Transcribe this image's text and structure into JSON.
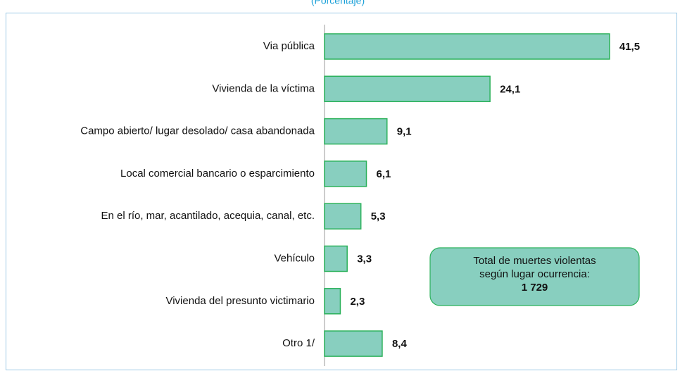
{
  "chart_data": {
    "type": "bar",
    "orientation": "horizontal",
    "subtitle": "(Porcentaje)",
    "categories": [
      "Via pública",
      "Vivienda de la víctima",
      "Campo abierto/ lugar desolado/ casa abandonada",
      "Local comercial bancario o esparcimiento",
      "En el río, mar, acantilado, acequia, canal, etc.",
      "Vehículo",
      "Vivienda del presunto victimario",
      "Otro 1/"
    ],
    "values": [
      41.5,
      24.1,
      9.1,
      6.1,
      5.3,
      3.3,
      2.3,
      8.4
    ],
    "value_labels": [
      "41,5",
      "24,1",
      "9,1",
      "6,1",
      "5,3",
      "3,3",
      "2,3",
      "8,4"
    ],
    "color": "#88cfbf",
    "edge_color": "#2bb15a",
    "xlim": [
      0,
      45
    ],
    "annotation": [
      "Total de muertes violentas",
      "según lugar ocurrencia:",
      "1 729"
    ]
  }
}
